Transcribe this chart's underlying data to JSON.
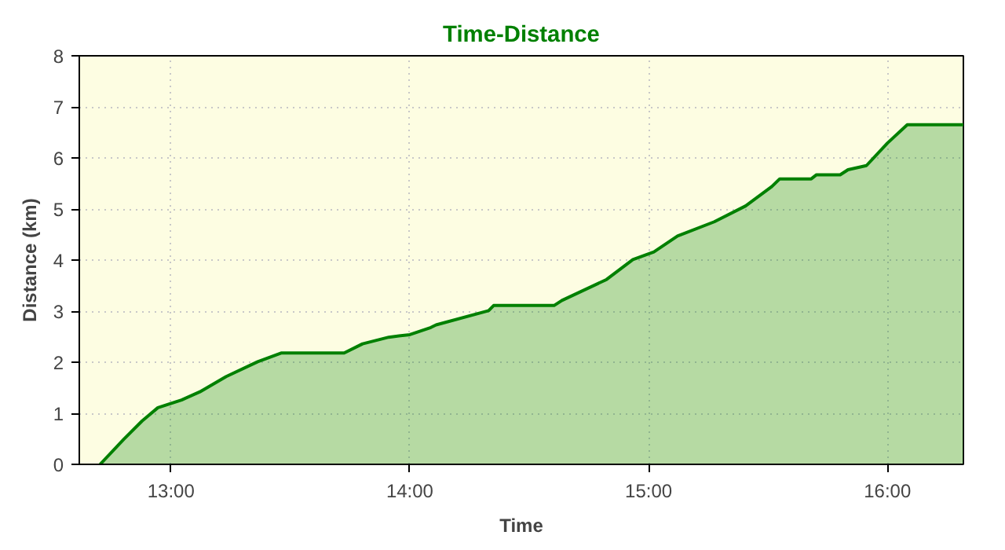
{
  "chart_data": {
    "type": "area",
    "title": "Time-Distance",
    "xlabel": "Time",
    "ylabel": "Distance (km)",
    "x": [
      12.703,
      12.802,
      12.879,
      12.945,
      13.044,
      13.121,
      13.231,
      13.363,
      13.461,
      13.725,
      13.802,
      13.912,
      14.0,
      14.088,
      14.11,
      14.33,
      14.351,
      14.604,
      14.637,
      14.824,
      14.934,
      15.022,
      15.121,
      15.275,
      15.406,
      15.516,
      15.549,
      15.681,
      15.703,
      15.802,
      15.835,
      15.912,
      16.0,
      16.083,
      16.318
    ],
    "series": [
      {
        "color": "#008000",
        "values": [
          0,
          0.49,
          0.85,
          1.11,
          1.26,
          1.42,
          1.72,
          2.01,
          2.18,
          2.18,
          2.36,
          2.49,
          2.54,
          2.68,
          2.73,
          3.01,
          3.11,
          3.11,
          3.21,
          3.62,
          4.01,
          4.16,
          4.47,
          4.75,
          5.06,
          5.44,
          5.59,
          5.59,
          5.67,
          5.67,
          5.77,
          5.85,
          6.29,
          6.65,
          6.65
        ]
      }
    ],
    "xlim": [
      12.616,
      16.318
    ],
    "ylim": [
      0,
      8
    ],
    "xticks": [
      {
        "value": 13,
        "label": "13:00"
      },
      {
        "value": 14,
        "label": "14:00"
      },
      {
        "value": 15,
        "label": "15:00"
      },
      {
        "value": 16,
        "label": "16:00"
      }
    ],
    "yticks": [
      0,
      1,
      2,
      3,
      4,
      5,
      6,
      7,
      8
    ],
    "grid": true
  }
}
